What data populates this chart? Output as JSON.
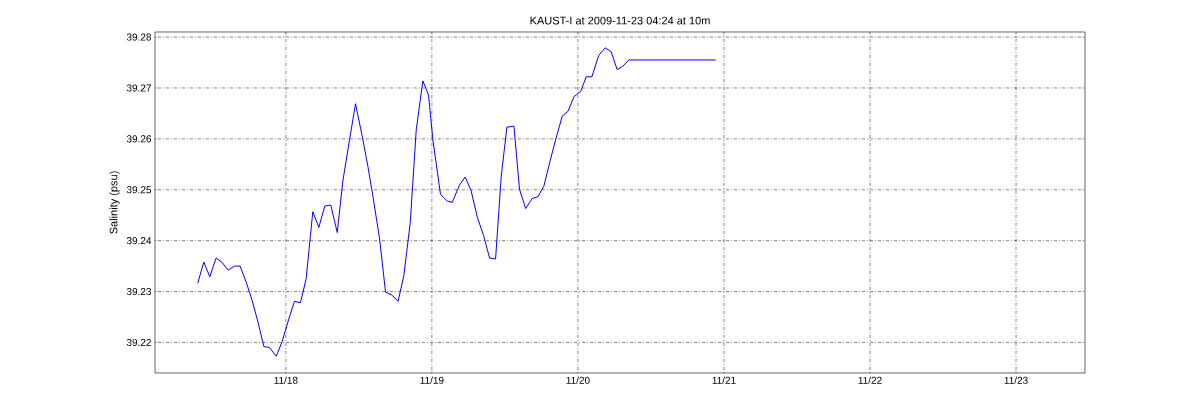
{
  "chart_data": {
    "type": "line",
    "title": "KAUST-I at 2009-11-23 04:24 at 10m",
    "ylabel": "Salinity (psu)",
    "x": [
      "2009-11-17T09:32",
      "2009-11-17T10:31",
      "2009-11-17T11:30",
      "2009-11-17T12:33",
      "2009-11-17T13:32",
      "2009-11-17T14:31",
      "2009-11-17T15:33",
      "2009-11-17T16:29",
      "2009-11-17T17:28",
      "2009-11-17T18:27",
      "2009-11-17T19:24",
      "2009-11-17T20:23",
      "2009-11-17T21:19",
      "2009-11-17T22:25",
      "2009-11-17T23:24",
      "2009-11-18T00:23",
      "2009-11-18T01:25",
      "2009-11-18T02:24",
      "2009-11-18T03:20",
      "2009-11-18T04:26",
      "2009-11-18T05:25",
      "2009-11-18T06:24",
      "2009-11-18T07:23",
      "2009-11-18T08:27",
      "2009-11-18T09:22",
      "2009-11-18T10:28",
      "2009-11-18T11:27",
      "2009-11-18T12:33",
      "2009-11-18T13:29",
      "2009-11-18T14:18",
      "2009-11-18T15:25",
      "2009-11-18T16:23",
      "2009-11-18T17:25",
      "2009-11-18T18:27",
      "2009-11-18T19:24",
      "2009-11-18T20:27",
      "2009-11-18T21:26",
      "2009-11-18T22:31",
      "2009-11-18T23:27",
      "2009-11-19T00:10",
      "2009-11-19T01:25",
      "2009-11-19T02:31",
      "2009-11-19T03:20",
      "2009-11-19T04:32",
      "2009-11-19T05:28",
      "2009-11-19T06:27",
      "2009-11-19T07:28",
      "2009-11-19T08:30",
      "2009-11-19T09:29",
      "2009-11-19T10:28",
      "2009-11-19T11:24",
      "2009-11-19T12:20",
      "2009-11-19T13:29",
      "2009-11-19T14:24",
      "2009-11-19T15:25",
      "2009-11-19T16:29",
      "2009-11-19T17:25",
      "2009-11-19T18:24",
      "2009-11-19T19:21",
      "2009-11-19T20:20",
      "2009-11-19T21:26",
      "2009-11-19T22:22",
      "2009-11-19T23:21",
      "2009-11-20T00:26",
      "2009-11-20T01:22",
      "2009-11-20T02:18",
      "2009-11-20T03:25",
      "2009-11-20T04:29",
      "2009-11-20T05:28",
      "2009-11-20T06:27",
      "2009-11-20T07:23",
      "2009-11-20T08:23",
      "2009-11-20T22:35"
    ],
    "series": [
      {
        "color": "#0000ff",
        "values": [
          39.2317,
          39.2358,
          39.2329,
          39.2366,
          39.2357,
          39.2342,
          39.235,
          39.235,
          39.2319,
          39.2283,
          39.2241,
          39.2192,
          39.219,
          39.2173,
          39.2202,
          39.2242,
          39.2281,
          39.2278,
          39.2325,
          39.2457,
          39.2426,
          39.2468,
          39.247,
          39.2416,
          39.2517,
          39.2598,
          39.2669,
          39.2605,
          39.2546,
          39.2488,
          39.2403,
          39.2299,
          39.2293,
          39.2281,
          39.2332,
          39.2436,
          39.2618,
          39.2714,
          39.2686,
          39.2598,
          39.2491,
          39.2478,
          39.2475,
          39.2509,
          39.2525,
          39.2498,
          39.2446,
          39.241,
          39.2366,
          39.2364,
          39.2527,
          39.2623,
          39.2625,
          39.2501,
          39.2463,
          39.2483,
          39.2486,
          39.2507,
          39.2553,
          39.2598,
          39.2645,
          39.2654,
          39.2683,
          39.2693,
          39.2722,
          39.2722,
          39.2764,
          39.2779,
          39.2771,
          39.2736,
          39.2743,
          39.2755,
          39.2755
        ]
      }
    ],
    "xlim": [
      "2009-11-17T02:30",
      "2009-11-23T11:20"
    ],
    "xticks": [
      {
        "value": "2009-11-18",
        "label": "11/18"
      },
      {
        "value": "2009-11-19",
        "label": "11/19"
      },
      {
        "value": "2009-11-20",
        "label": "11/20"
      },
      {
        "value": "2009-11-21",
        "label": "11/21"
      },
      {
        "value": "2009-11-22",
        "label": "11/22"
      },
      {
        "value": "2009-11-23",
        "label": "11/23"
      }
    ],
    "ylim": [
      39.214,
      39.281
    ],
    "yticks": [
      39.22,
      39.23,
      39.24,
      39.25,
      39.26,
      39.27,
      39.28
    ],
    "grid": true
  }
}
